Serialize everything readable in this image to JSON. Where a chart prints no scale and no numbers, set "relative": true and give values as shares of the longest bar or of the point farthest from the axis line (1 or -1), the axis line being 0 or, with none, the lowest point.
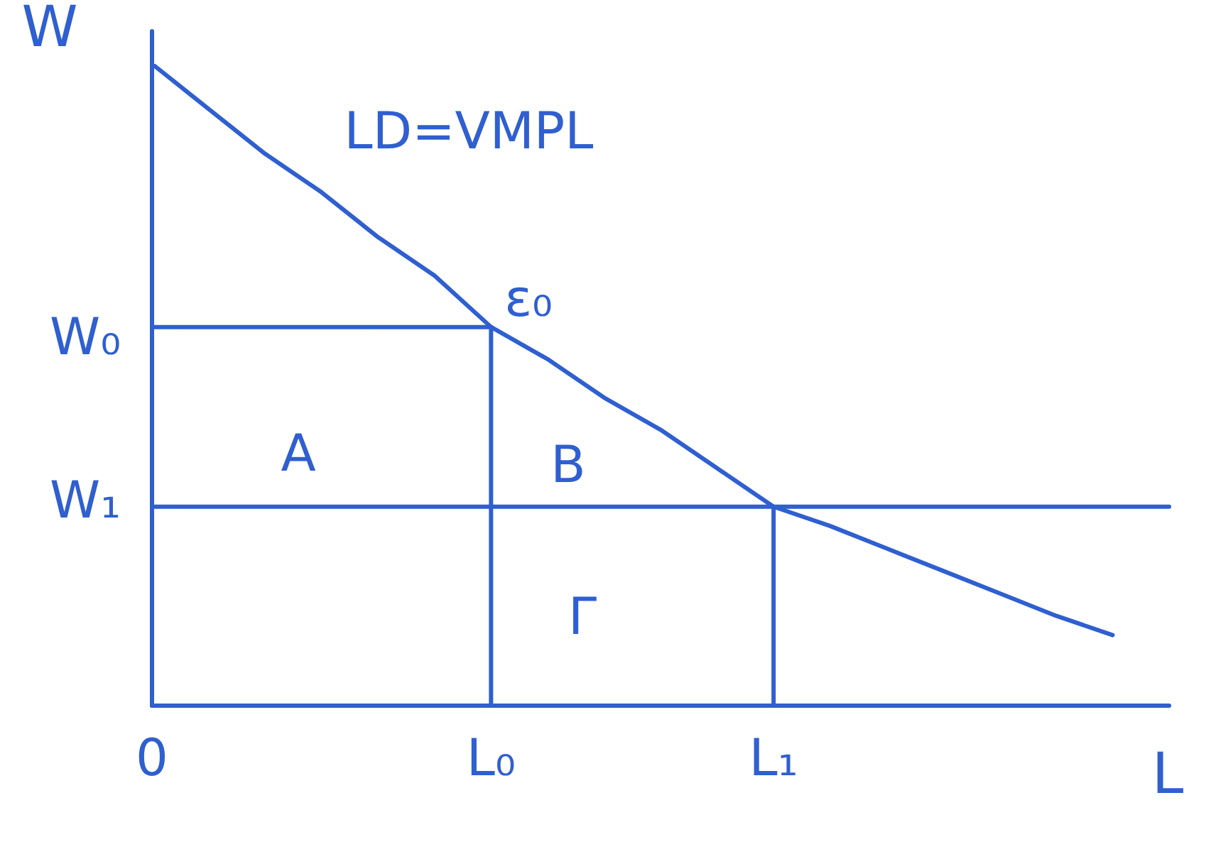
{
  "chart_data": {
    "type": "line",
    "relative": true,
    "xlabel": "L",
    "ylabel": "W",
    "categories": [
      "0",
      null,
      null,
      null,
      null,
      null,
      "L₀",
      null,
      null,
      null,
      null,
      "L₁",
      null,
      null,
      null,
      null,
      null,
      null,
      null
    ],
    "series": [
      {
        "color": "#2f5fd0",
        "values": [
          1,
          0.93,
          0.86,
          0.8,
          0.73,
          0.67,
          0.59,
          0.54,
          0.48,
          0.43,
          0.37,
          0.31,
          0.28,
          0.245,
          0.21,
          0.175,
          0.14,
          0.11,
          null
        ]
      },
      {
        "color": "#2f5fd0",
        "values": [
          0.59,
          0.59,
          0.59,
          0.59,
          0.59,
          0.59,
          0.59,
          null,
          null,
          null,
          null,
          null,
          null,
          null,
          null,
          null,
          null,
          null,
          null
        ]
      },
      {
        "color": "#2f5fd0",
        "x": [
          "L₀",
          "L₀"
        ],
        "values": [
          0,
          0.59
        ]
      },
      {
        "color": "#2f5fd0",
        "values": [
          0.31,
          0.31,
          0.31,
          0.31,
          0.31,
          0.31,
          0.31,
          0.31,
          0.31,
          0.31,
          0.31,
          0.31,
          0.31,
          0.31,
          0.31,
          0.31,
          0.31,
          0.31,
          0.31
        ]
      },
      {
        "color": "#2f5fd0",
        "x": [
          "L₁",
          "L₁"
        ],
        "values": [
          0,
          0.31
        ]
      }
    ],
    "annotations": [
      "LD=VMPL",
      "ε₀",
      "A",
      "B",
      "Γ",
      "W₀",
      "W₁"
    ],
    "ref_lines": [
      {
        "axis": "y",
        "value": 0
      }
    ],
    "grid": false,
    "legend": false,
    "marker": "none",
    "line_style": "solid"
  }
}
